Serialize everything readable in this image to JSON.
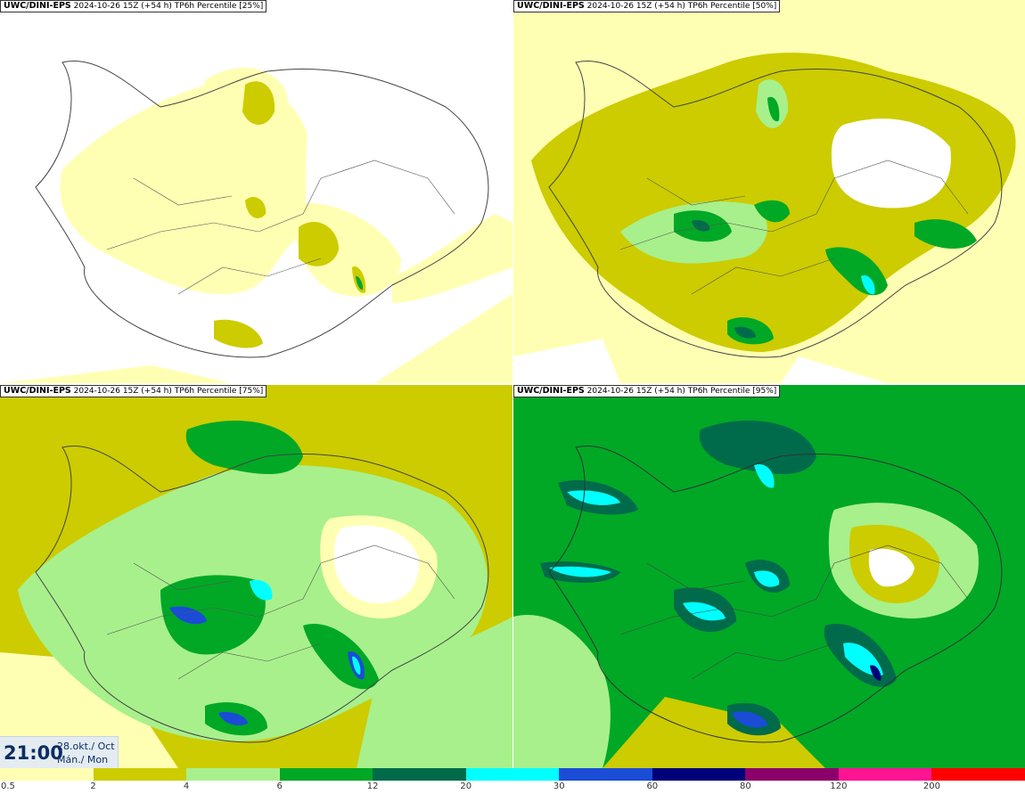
{
  "panels": [
    {
      "model": "UWC/DINI-EPS",
      "meta": "2024-10-26 15Z (+54 h)",
      "field": "TP6h Percentile [25%]"
    },
    {
      "model": "UWC/DINI-EPS",
      "meta": "2024-10-26 15Z (+54 h)",
      "field": "TP6h Percentile [50%]"
    },
    {
      "model": "UWC/DINI-EPS",
      "meta": "2024-10-26 15Z (+54 h)",
      "field": "TP6h Percentile [75%]"
    },
    {
      "model": "UWC/DINI-EPS",
      "meta": "2024-10-26 15Z (+54 h)",
      "field": "TP6h Percentile [95%]"
    }
  ],
  "valid_time": {
    "hour": "21:00",
    "date_line1": "28.okt./ Oct",
    "date_line2": "Mán./ Mon"
  },
  "legend": {
    "colors": [
      "#ffffb3",
      "#cccc00",
      "#a8f08c",
      "#00a826",
      "#006b4a",
      "#00ffff",
      "#1a4cd6",
      "#00007a",
      "#8b006b",
      "#ff1493",
      "#ff0000"
    ],
    "ticks": [
      "0.5",
      "2",
      "4",
      "6",
      "12",
      "20",
      "30",
      "60",
      "80",
      "120",
      "200"
    ]
  }
}
